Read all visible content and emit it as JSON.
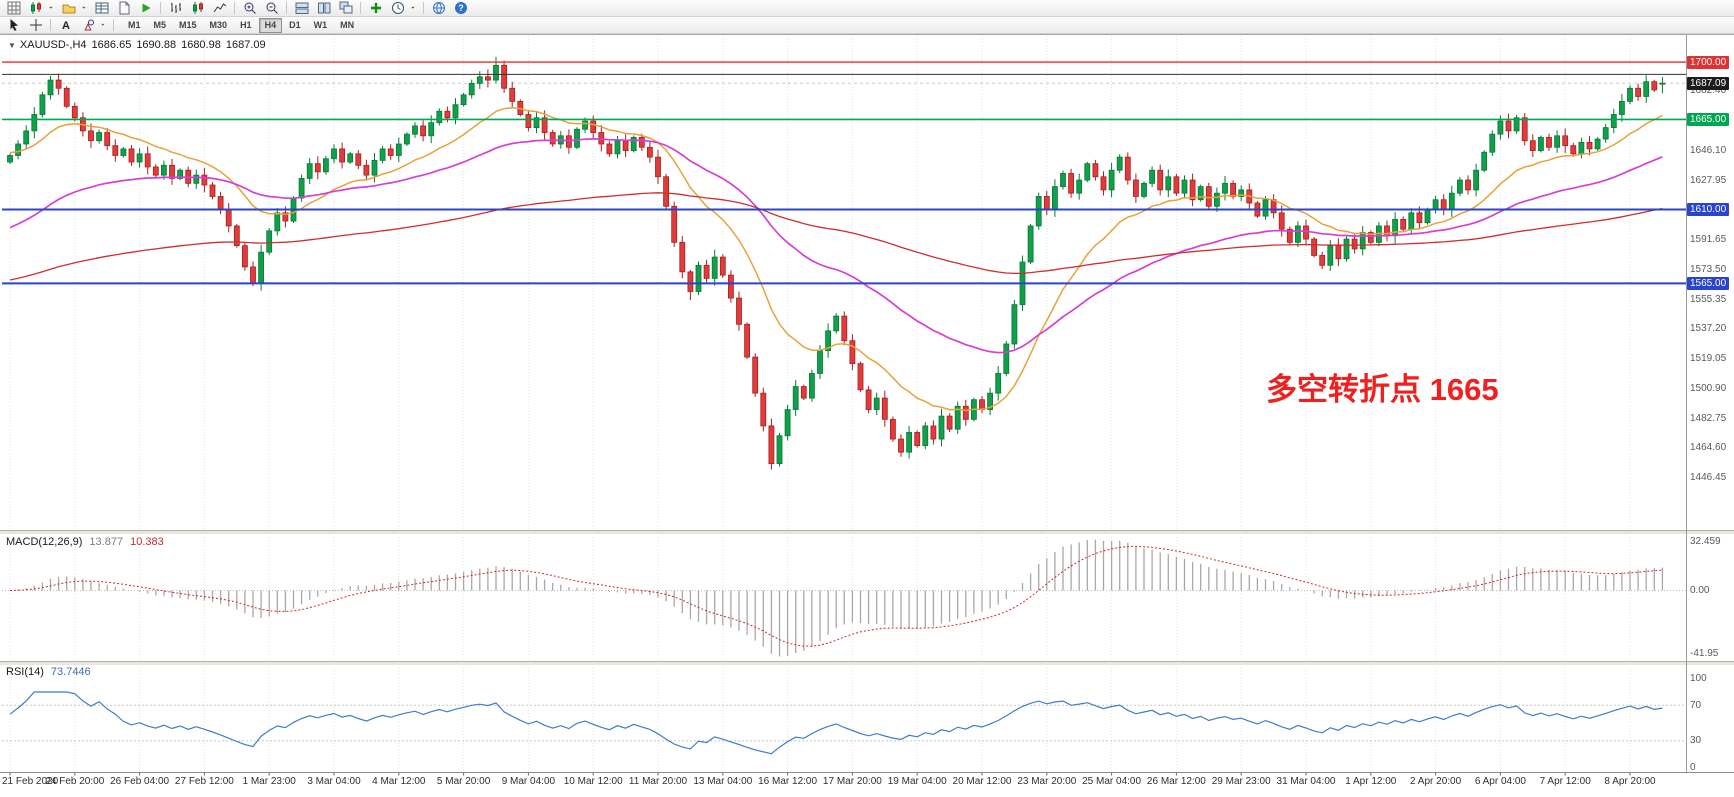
{
  "toolbar_main": {
    "buttons": [
      {
        "name": "chart-grid-button",
        "icon": "grid"
      },
      {
        "name": "new-chart-button",
        "icon": "candles"
      },
      {
        "name": "new-chart-caret",
        "icon": "caret"
      },
      {
        "name": "profiles-button",
        "icon": "folder"
      },
      {
        "name": "profiles-caret",
        "icon": "caret"
      },
      {
        "name": "market-watch-button",
        "icon": "table"
      },
      {
        "name": "new-order-button",
        "icon": "doc"
      },
      {
        "name": "autotrading-button",
        "icon": "play"
      },
      {
        "sep": true
      },
      {
        "name": "bar-chart-button",
        "icon": "bars"
      },
      {
        "name": "candle-chart-button",
        "icon": "candles"
      },
      {
        "name": "line-chart-button",
        "icon": "linechart"
      },
      {
        "sep": true
      },
      {
        "name": "zoom-in-button",
        "icon": "zoomin"
      },
      {
        "name": "zoom-out-button",
        "icon": "zoomout"
      },
      {
        "sep": true
      },
      {
        "name": "tile-horizontal-button",
        "icon": "tileh"
      },
      {
        "name": "tile-vertical-button",
        "icon": "tilev"
      },
      {
        "name": "cascade-windows-button",
        "icon": "cascade"
      },
      {
        "sep": true
      },
      {
        "name": "add-indicator-button",
        "icon": "plusgreen"
      },
      {
        "name": "periods-button",
        "icon": "clock"
      },
      {
        "name": "periods-caret",
        "icon": "caret"
      },
      {
        "sep": true
      },
      {
        "name": "web-button",
        "icon": "globe"
      },
      {
        "name": "help-button",
        "icon": "question"
      }
    ]
  },
  "toolbar_tools": {
    "buttons": [
      {
        "name": "cursor-button",
        "icon": "cursor"
      },
      {
        "name": "crosshair-button",
        "icon": "cross"
      },
      {
        "sep": true
      },
      {
        "name": "text-label-button",
        "icon": "letterA"
      },
      {
        "name": "shapes-button",
        "icon": "shapes"
      },
      {
        "name": "shapes-caret",
        "icon": "caret"
      },
      {
        "sep": true
      }
    ],
    "timeframes": [
      "M1",
      "M5",
      "M15",
      "M30",
      "H1",
      "H4",
      "D1",
      "W1",
      "MN"
    ],
    "active_timeframe": "H4"
  },
  "chart": {
    "title": {
      "expander": "▼",
      "symbol_period": "XAUUSD-,H4",
      "open": "1686.65",
      "high": "1690.88",
      "low": "1680.98",
      "close": "1687.09"
    },
    "annotation": {
      "text": "多空转折点 1665",
      "color": "#f02020"
    },
    "price_range": {
      "min": 1414.5,
      "max": 1716.5
    },
    "candle_colors": {
      "up": "#10a04a",
      "up_dark": "#067a36",
      "down": "#e23b3b",
      "down_dark": "#a81f1f"
    },
    "bid_line": {
      "price": 1687.09
    },
    "hlines": [
      {
        "name": "resistance-1700",
        "price": 1700.0,
        "color": "#e03232",
        "width": 1.4
      },
      {
        "name": "trendline-black",
        "price": 1692.5,
        "color": "#303030",
        "width": 1
      },
      {
        "name": "pivot-1665",
        "price": 1665.0,
        "color": "#00a651",
        "width": 1.6
      },
      {
        "name": "support-1610",
        "price": 1610.0,
        "color": "#2a44cc",
        "width": 2
      },
      {
        "name": "support-1565",
        "price": 1565.0,
        "color": "#2a44cc",
        "width": 2
      }
    ],
    "price_axis": {
      "tick_base": 1446.45,
      "tick_step": 18.15,
      "tick_count": 14,
      "badges": [
        {
          "label": "1700.00",
          "price": 1700.0,
          "bg": "#e03232"
        },
        {
          "label": "1687.09",
          "price": 1687.09,
          "bg": "#1c1c1c"
        },
        {
          "label": "1665.00",
          "price": 1665.0,
          "bg": "#00a651"
        },
        {
          "label": "1610.00",
          "price": 1610.0,
          "bg": "#2a44cc"
        },
        {
          "label": "1565.00",
          "price": 1565.0,
          "bg": "#2a44cc"
        }
      ]
    }
  },
  "chart_data": {
    "type": "candlestick",
    "symbol": "XAUUSD",
    "period": "H4",
    "title": "XAUUSD-,H4",
    "last_candle": {
      "open": 1686.65,
      "high": 1690.88,
      "low": 1680.98,
      "close": 1687.09
    },
    "closes": [
      1643,
      1650,
      1658,
      1668,
      1680,
      1689,
      1684,
      1673,
      1666,
      1658,
      1652,
      1657,
      1649,
      1643,
      1647,
      1639,
      1644,
      1636,
      1631,
      1637,
      1629,
      1634,
      1626,
      1631,
      1625,
      1618,
      1610,
      1600,
      1588,
      1575,
      1565,
      1584,
      1597,
      1608,
      1603,
      1617,
      1629,
      1638,
      1633,
      1641,
      1647,
      1639,
      1644,
      1637,
      1631,
      1640,
      1647,
      1643,
      1650,
      1656,
      1661,
      1655,
      1663,
      1670,
      1666,
      1674,
      1680,
      1687,
      1691,
      1689,
      1698,
      1684,
      1676,
      1668,
      1660,
      1666,
      1657,
      1650,
      1655,
      1648,
      1659,
      1664,
      1657,
      1650,
      1644,
      1652,
      1646,
      1654,
      1648,
      1642,
      1630,
      1612,
      1590,
      1572,
      1560,
      1576,
      1568,
      1581,
      1570,
      1556,
      1540,
      1520,
      1498,
      1478,
      1455,
      1472,
      1488,
      1502,
      1495,
      1510,
      1524,
      1536,
      1545,
      1530,
      1516,
      1500,
      1488,
      1495,
      1482,
      1470,
      1462,
      1474,
      1466,
      1478,
      1470,
      1484,
      1476,
      1490,
      1482,
      1494,
      1488,
      1498,
      1510,
      1528,
      1552,
      1578,
      1600,
      1618,
      1610,
      1624,
      1632,
      1620,
      1628,
      1638,
      1630,
      1622,
      1634,
      1642,
      1628,
      1618,
      1626,
      1634,
      1622,
      1630,
      1620,
      1628,
      1616,
      1624,
      1612,
      1620,
      1626,
      1618,
      1622,
      1614,
      1606,
      1616,
      1608,
      1598,
      1590,
      1600,
      1592,
      1582,
      1576,
      1588,
      1580,
      1592,
      1586,
      1596,
      1590,
      1600,
      1594,
      1604,
      1598,
      1608,
      1602,
      1610,
      1616,
      1610,
      1620,
      1628,
      1622,
      1634,
      1645,
      1656,
      1664,
      1658,
      1666,
      1652,
      1646,
      1654,
      1648,
      1655,
      1649,
      1644,
      1651,
      1647,
      1653,
      1660,
      1668,
      1676,
      1684,
      1679,
      1688,
      1683,
      1687.1
    ],
    "wick_overrides": {
      "5": {
        "high": 1691.5
      },
      "30": {
        "low": 1563.2
      },
      "60": {
        "high": 1703.2
      },
      "84": {
        "low": 1554.8
      },
      "94": {
        "low": 1451.3
      }
    },
    "moving_averages": [
      {
        "name": "ma-fast-orange",
        "color": "#e8a23a",
        "period": 16,
        "seed": 1645,
        "width": 1.5
      },
      {
        "name": "ma-medium-magenta",
        "color": "#d53fd5",
        "period": 45,
        "seed": 1597,
        "width": 1.7
      },
      {
        "name": "ma-slow-red",
        "color": "#cf2e2e",
        "period": 150,
        "seed": 1566,
        "width": 1.3
      }
    ],
    "x_labels": [
      "21 Feb 2020",
      "24 Feb 20:00",
      "26 Feb 04:00",
      "27 Feb 12:00",
      "1 Mar 23:00",
      "3 Mar 04:00",
      "4 Mar 12:00",
      "5 Mar 20:00",
      "9 Mar 04:00",
      "10 Mar 12:00",
      "11 Mar 20:00",
      "13 Mar 04:00",
      "16 Mar 12:00",
      "17 Mar 20:00",
      "19 Mar 04:00",
      "20 Mar 12:00",
      "23 Mar 20:00",
      "25 Mar 04:00",
      "26 Mar 12:00",
      "29 Mar 23:00",
      "31 Mar 04:00",
      "1 Apr 12:00",
      "2 Apr 20:00",
      "6 Apr 04:00",
      "7 Apr 12:00",
      "8 Apr 20:00"
    ]
  },
  "macd_panel": {
    "label": "MACD(12,26,9)",
    "value_main": "13.877",
    "value_signal": "10.383",
    "axis": [
      "32.459",
      "0.00",
      "-41.95"
    ],
    "range": {
      "min": -46.3,
      "max": 37.6
    },
    "histogram_color": "#a8a8a8",
    "signal_color": "#cc2a2a",
    "params": {
      "fast": 12,
      "slow": 26,
      "signal": 9
    }
  },
  "rsi_panel": {
    "label": "RSI(14)",
    "value": "73.7446",
    "axis": [
      "100",
      "70",
      "30",
      "0"
    ],
    "levels": [
      70,
      30
    ],
    "line_color": "#3f7cc9",
    "period": 14
  },
  "time_axis": {
    "labels_ref": "chart_data.x_labels"
  }
}
